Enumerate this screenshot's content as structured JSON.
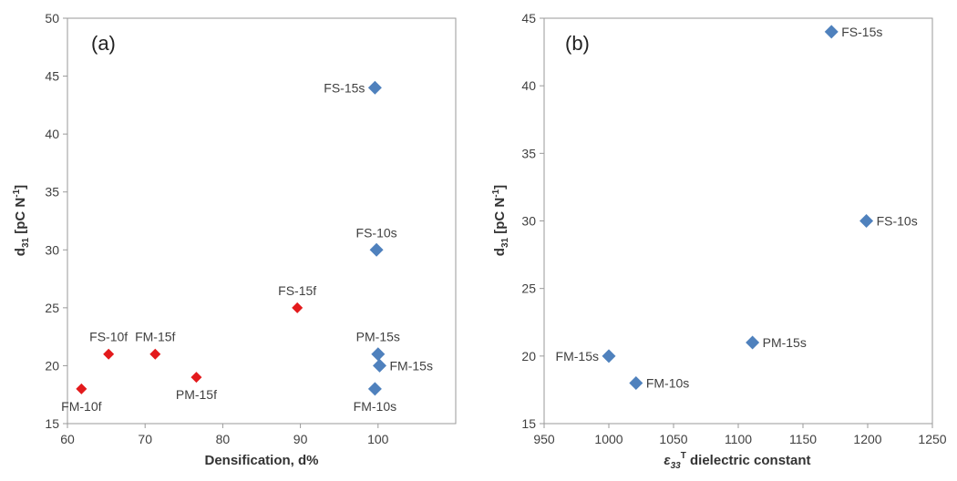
{
  "chart_data": [
    {
      "type": "scatter",
      "panel_label": "(a)",
      "xlabel": "Densification, d%",
      "ylabel_main": "d",
      "ylabel_sub": "31",
      "ylabel_rest": " [pC N",
      "ylabel_sup": "-1",
      "ylabel_close": "]",
      "xlim": [
        60,
        110
      ],
      "ylim": [
        15,
        50
      ],
      "xticks": [
        "60",
        "70",
        "80",
        "90",
        "100"
      ],
      "yticks": [
        "15",
        "20",
        "25",
        "30",
        "35",
        "40",
        "45",
        "50"
      ],
      "grid": false,
      "series": [
        {
          "color": "#4f81bd",
          "marker": "diamond",
          "points": [
            {
              "label": "FS-15s",
              "x": 99.6,
              "y": 44,
              "label_pos": "left"
            },
            {
              "label": "FS-10s",
              "x": 99.8,
              "y": 30,
              "label_pos": "above"
            },
            {
              "label": "PM-15s",
              "x": 100,
              "y": 21,
              "label_pos": "above"
            },
            {
              "label": "FM-15s",
              "x": 100.2,
              "y": 20,
              "label_pos": "right"
            },
            {
              "label": "FM-10s",
              "x": 99.6,
              "y": 18,
              "label_pos": "below"
            }
          ]
        },
        {
          "color": "#e31a1c",
          "marker": "diamond",
          "points": [
            {
              "label": "FM-10f",
              "x": 61.8,
              "y": 18,
              "label_pos": "below"
            },
            {
              "label": "FS-10f",
              "x": 65.3,
              "y": 21,
              "label_pos": "above"
            },
            {
              "label": "FM-15f",
              "x": 71.3,
              "y": 21,
              "label_pos": "above"
            },
            {
              "label": "PM-15f",
              "x": 76.6,
              "y": 19,
              "label_pos": "below"
            },
            {
              "label": "FS-15f",
              "x": 89.6,
              "y": 25,
              "label_pos": "above"
            }
          ]
        }
      ]
    },
    {
      "type": "scatter",
      "panel_label": "(b)",
      "xlabel_symbol": "ε",
      "xlabel_sub": "33",
      "xlabel_sup": "T",
      "xlabel_rest": " dielectric constant",
      "ylabel_main": "d",
      "ylabel_sub": "31",
      "ylabel_rest": " [pC N",
      "ylabel_sup": "-1",
      "ylabel_close": "]",
      "xlim": [
        950,
        1250
      ],
      "ylim": [
        15,
        45
      ],
      "xticks": [
        "950",
        "1000",
        "1050",
        "1100",
        "1150",
        "1200",
        "1250"
      ],
      "yticks": [
        "15",
        "20",
        "25",
        "30",
        "35",
        "40",
        "45"
      ],
      "grid": false,
      "series": [
        {
          "color": "#4f81bd",
          "marker": "diamond",
          "points": [
            {
              "label": "FS-15s",
              "x": 1172,
              "y": 44,
              "label_pos": "right"
            },
            {
              "label": "FS-10s",
              "x": 1199,
              "y": 30,
              "label_pos": "right"
            },
            {
              "label": "PM-15s",
              "x": 1111,
              "y": 21,
              "label_pos": "right"
            },
            {
              "label": "FM-15s",
              "x": 1000,
              "y": 20,
              "label_pos": "left"
            },
            {
              "label": "FM-10s",
              "x": 1021,
              "y": 18,
              "label_pos": "right"
            }
          ]
        }
      ]
    }
  ]
}
